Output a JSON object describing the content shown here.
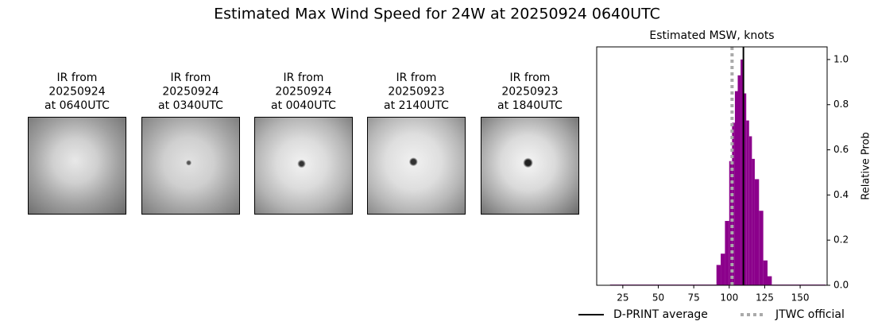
{
  "title": "Estimated Max Wind Speed for 24W at 20250924 0640UTC",
  "panels": [
    {
      "lines": [
        "IR from",
        "20250924",
        "at 0640UTC"
      ]
    },
    {
      "lines": [
        "IR from",
        "20250924",
        "at 0340UTC"
      ]
    },
    {
      "lines": [
        "IR from",
        "20250924",
        "at 0040UTC"
      ]
    },
    {
      "lines": [
        "IR from",
        "20250923",
        "at 2140UTC"
      ]
    },
    {
      "lines": [
        "IR from",
        "20250923",
        "at 1840UTC"
      ]
    }
  ],
  "chart_data": {
    "type": "histogram",
    "title": "Estimated MSW, knots",
    "ylabel": "Relative Prob",
    "color": "#8b008b",
    "bins": [
      16,
      91,
      94,
      97,
      100,
      102,
      104,
      106,
      108,
      110,
      112,
      114,
      116,
      118,
      121,
      124,
      127,
      130,
      168
    ],
    "values": [
      0.003,
      0.09,
      0.14,
      0.285,
      0.55,
      0.72,
      0.86,
      0.93,
      1.0,
      0.85,
      0.73,
      0.66,
      0.56,
      0.47,
      0.33,
      0.11,
      0.04,
      0.003
    ],
    "xlim": [
      6.6,
      169
    ],
    "ylim": [
      0,
      1.056
    ],
    "xticks": [
      25,
      50,
      75,
      100,
      125,
      150
    ],
    "yticks": [
      {
        "value": 0,
        "label": "0.0"
      },
      0.2,
      0.4,
      0.6,
      0.8,
      {
        "value": 1,
        "label": "1.0"
      }
    ],
    "yaxis_side": "right",
    "lines": [
      {
        "name": "D-PRINT average",
        "value": 110,
        "color": "#000000",
        "style": "solid"
      },
      {
        "name": "JTWC official",
        "value": 102,
        "color": "#aaaaaa",
        "style": "dotted"
      }
    ]
  }
}
